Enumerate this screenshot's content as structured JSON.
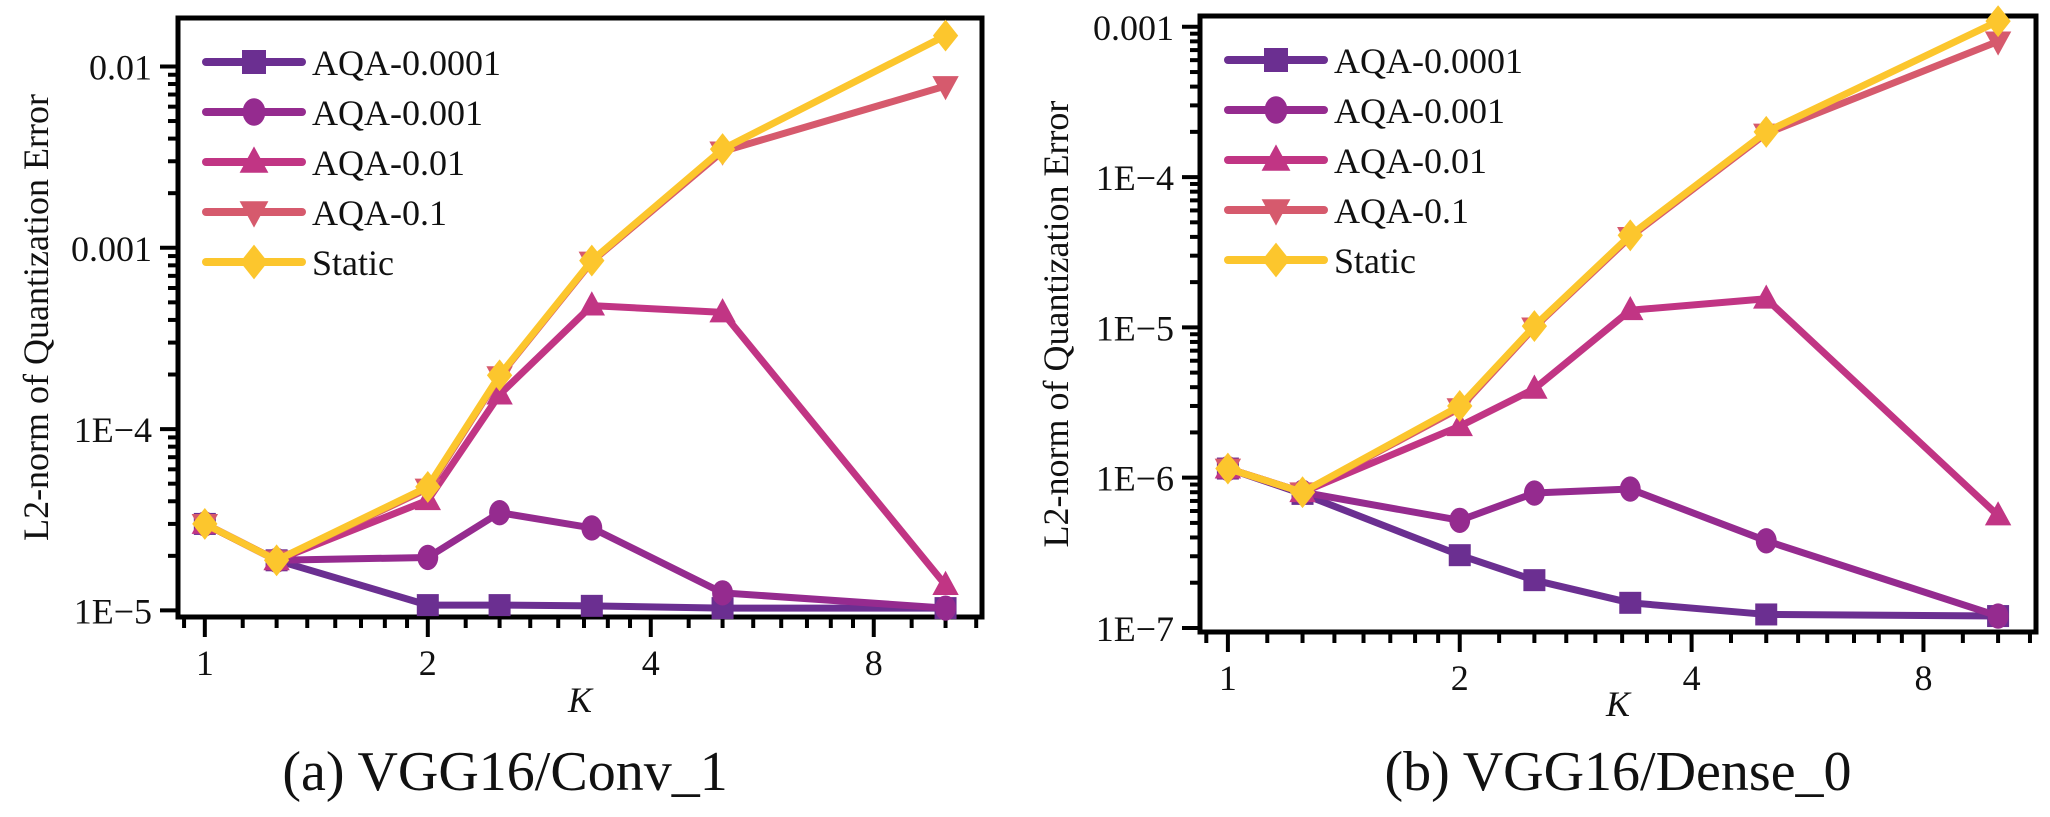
{
  "chart_data": [
    {
      "type": "line",
      "title": "",
      "caption": "(a) VGG16/Conv_1",
      "xlabel": "K",
      "ylabel": "L2-norm of Quantization Error",
      "xscale": "log2",
      "yscale": "log10",
      "xlim": [
        0.92,
        11.2
      ],
      "ylim": [
        9.2e-06,
        0.0185
      ],
      "xticks": [
        1,
        2,
        4,
        8
      ],
      "xtick_labels": [
        "1",
        "2",
        "4",
        "8"
      ],
      "yticks": [
        1e-05,
        0.0001,
        0.001,
        0.01
      ],
      "ytick_labels": [
        "1E−5",
        "1E−4",
        "0.001",
        "0.01"
      ],
      "legend_position": "top-left",
      "grid": false,
      "x": [
        1,
        1.25,
        2,
        2.5,
        3.33,
        5,
        10
      ],
      "series": [
        {
          "name": "AQA-0.0001",
          "marker": "square",
          "color": "#6b2f91",
          "values": [
            3e-05,
            1.89e-05,
            1.07e-05,
            1.07e-05,
            1.06e-05,
            1.03e-05,
            1.03e-05
          ]
        },
        {
          "name": "AQA-0.001",
          "marker": "circle",
          "color": "#952b8f",
          "values": [
            3e-05,
            1.89e-05,
            1.96e-05,
            3.46e-05,
            2.85e-05,
            1.25e-05,
            1.03e-05
          ]
        },
        {
          "name": "AQA-0.01",
          "marker": "triangle-up",
          "color": "#c13584",
          "values": [
            3e-05,
            1.89e-05,
            4.05e-05,
            0.000155,
            0.00048,
            0.00044,
            1.38e-05
          ]
        },
        {
          "name": "AQA-0.1",
          "marker": "triangle-down",
          "color": "#d65a6d",
          "values": [
            3e-05,
            1.89e-05,
            4.7e-05,
            0.000196,
            0.00084,
            0.0034,
            0.0078
          ]
        },
        {
          "name": "Static",
          "marker": "diamond",
          "color": "#fcc62d",
          "values": [
            3e-05,
            1.89e-05,
            4.8e-05,
            0.000198,
            0.00085,
            0.0035,
            0.0148
          ]
        }
      ]
    },
    {
      "type": "line",
      "title": "",
      "caption": "(b) VGG16/Dense_0",
      "xlabel": "K",
      "ylabel": "L2-norm of Quantization Error",
      "xscale": "log2",
      "yscale": "log10",
      "xlim": [
        0.92,
        11.2
      ],
      "ylim": [
        9.4e-08,
        0.00118
      ],
      "xticks": [
        1,
        2,
        4,
        8
      ],
      "xtick_labels": [
        "1",
        "2",
        "4",
        "8"
      ],
      "yticks": [
        1e-07,
        1e-06,
        1e-05,
        0.0001,
        0.001
      ],
      "ytick_labels": [
        "1E−7",
        "1E−6",
        "1E−5",
        "1E−4",
        "0.001"
      ],
      "legend_position": "top-left",
      "grid": false,
      "x": [
        1,
        1.25,
        2,
        2.5,
        3.33,
        5,
        10
      ],
      "series": [
        {
          "name": "AQA-0.0001",
          "marker": "square",
          "color": "#6b2f91",
          "values": [
            1.15e-06,
            7.8e-07,
            3.05e-07,
            2.08e-07,
            1.47e-07,
            1.23e-07,
            1.2e-07
          ]
        },
        {
          "name": "AQA-0.001",
          "marker": "circle",
          "color": "#952b8f",
          "values": [
            1.15e-06,
            8e-07,
            5.2e-07,
            7.9e-07,
            8.4e-07,
            3.8e-07,
            1.2e-07
          ]
        },
        {
          "name": "AQA-0.01",
          "marker": "triangle-up",
          "color": "#c13584",
          "values": [
            1.15e-06,
            8e-07,
            2.2e-06,
            3.9e-06,
            1.3e-05,
            1.55e-05,
            5.6e-07
          ]
        },
        {
          "name": "AQA-0.1",
          "marker": "triangle-down",
          "color": "#d65a6d",
          "values": [
            1.15e-06,
            8e-07,
            2.9e-06,
            1e-05,
            4e-05,
            0.000195,
            0.0008
          ]
        },
        {
          "name": "Static",
          "marker": "diamond",
          "color": "#fcc62d",
          "values": [
            1.15e-06,
            8e-07,
            3e-06,
            1.02e-05,
            4.1e-05,
            0.0002,
            0.00109
          ]
        }
      ]
    }
  ]
}
